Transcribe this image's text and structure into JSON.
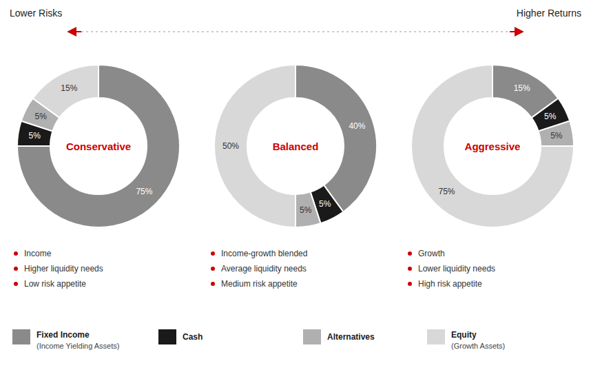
{
  "chart_data": {
    "type": "donut",
    "categories": [
      "Fixed Income",
      "Cash",
      "Alternatives",
      "Equity"
    ],
    "category_notes": [
      "(Income Yielding Assets)",
      null,
      null,
      "(Growth Assets)"
    ],
    "colors": [
      "#8a8a8a",
      "#1a1a1a",
      "#b0b0b0",
      "#d8d8d8"
    ],
    "annotations": [
      "Lower Risks",
      "Higher Returns"
    ],
    "data_labels": true,
    "legend": "bottom",
    "series": [
      {
        "name": "Conservative",
        "values": [
          75,
          5,
          5,
          15
        ],
        "value_labels": [
          "75%",
          "5%",
          "5%",
          "15%"
        ],
        "notes": [
          "Income",
          "Higher liquidity needs",
          "Low risk appetite"
        ]
      },
      {
        "name": "Balanced",
        "values": [
          40,
          5,
          5,
          50
        ],
        "value_labels": [
          "40%",
          "5%",
          "5%",
          "50%"
        ],
        "notes": [
          "Income-growth blended",
          "Average liquidity needs",
          "Medium risk appetite"
        ]
      },
      {
        "name": "Aggressive",
        "values": [
          15,
          5,
          5,
          75
        ],
        "value_labels": [
          "15%",
          "5%",
          "5%",
          "75%"
        ],
        "notes": [
          "Growth",
          "Lower liquidity needs",
          "High risk appetite"
        ]
      }
    ]
  }
}
